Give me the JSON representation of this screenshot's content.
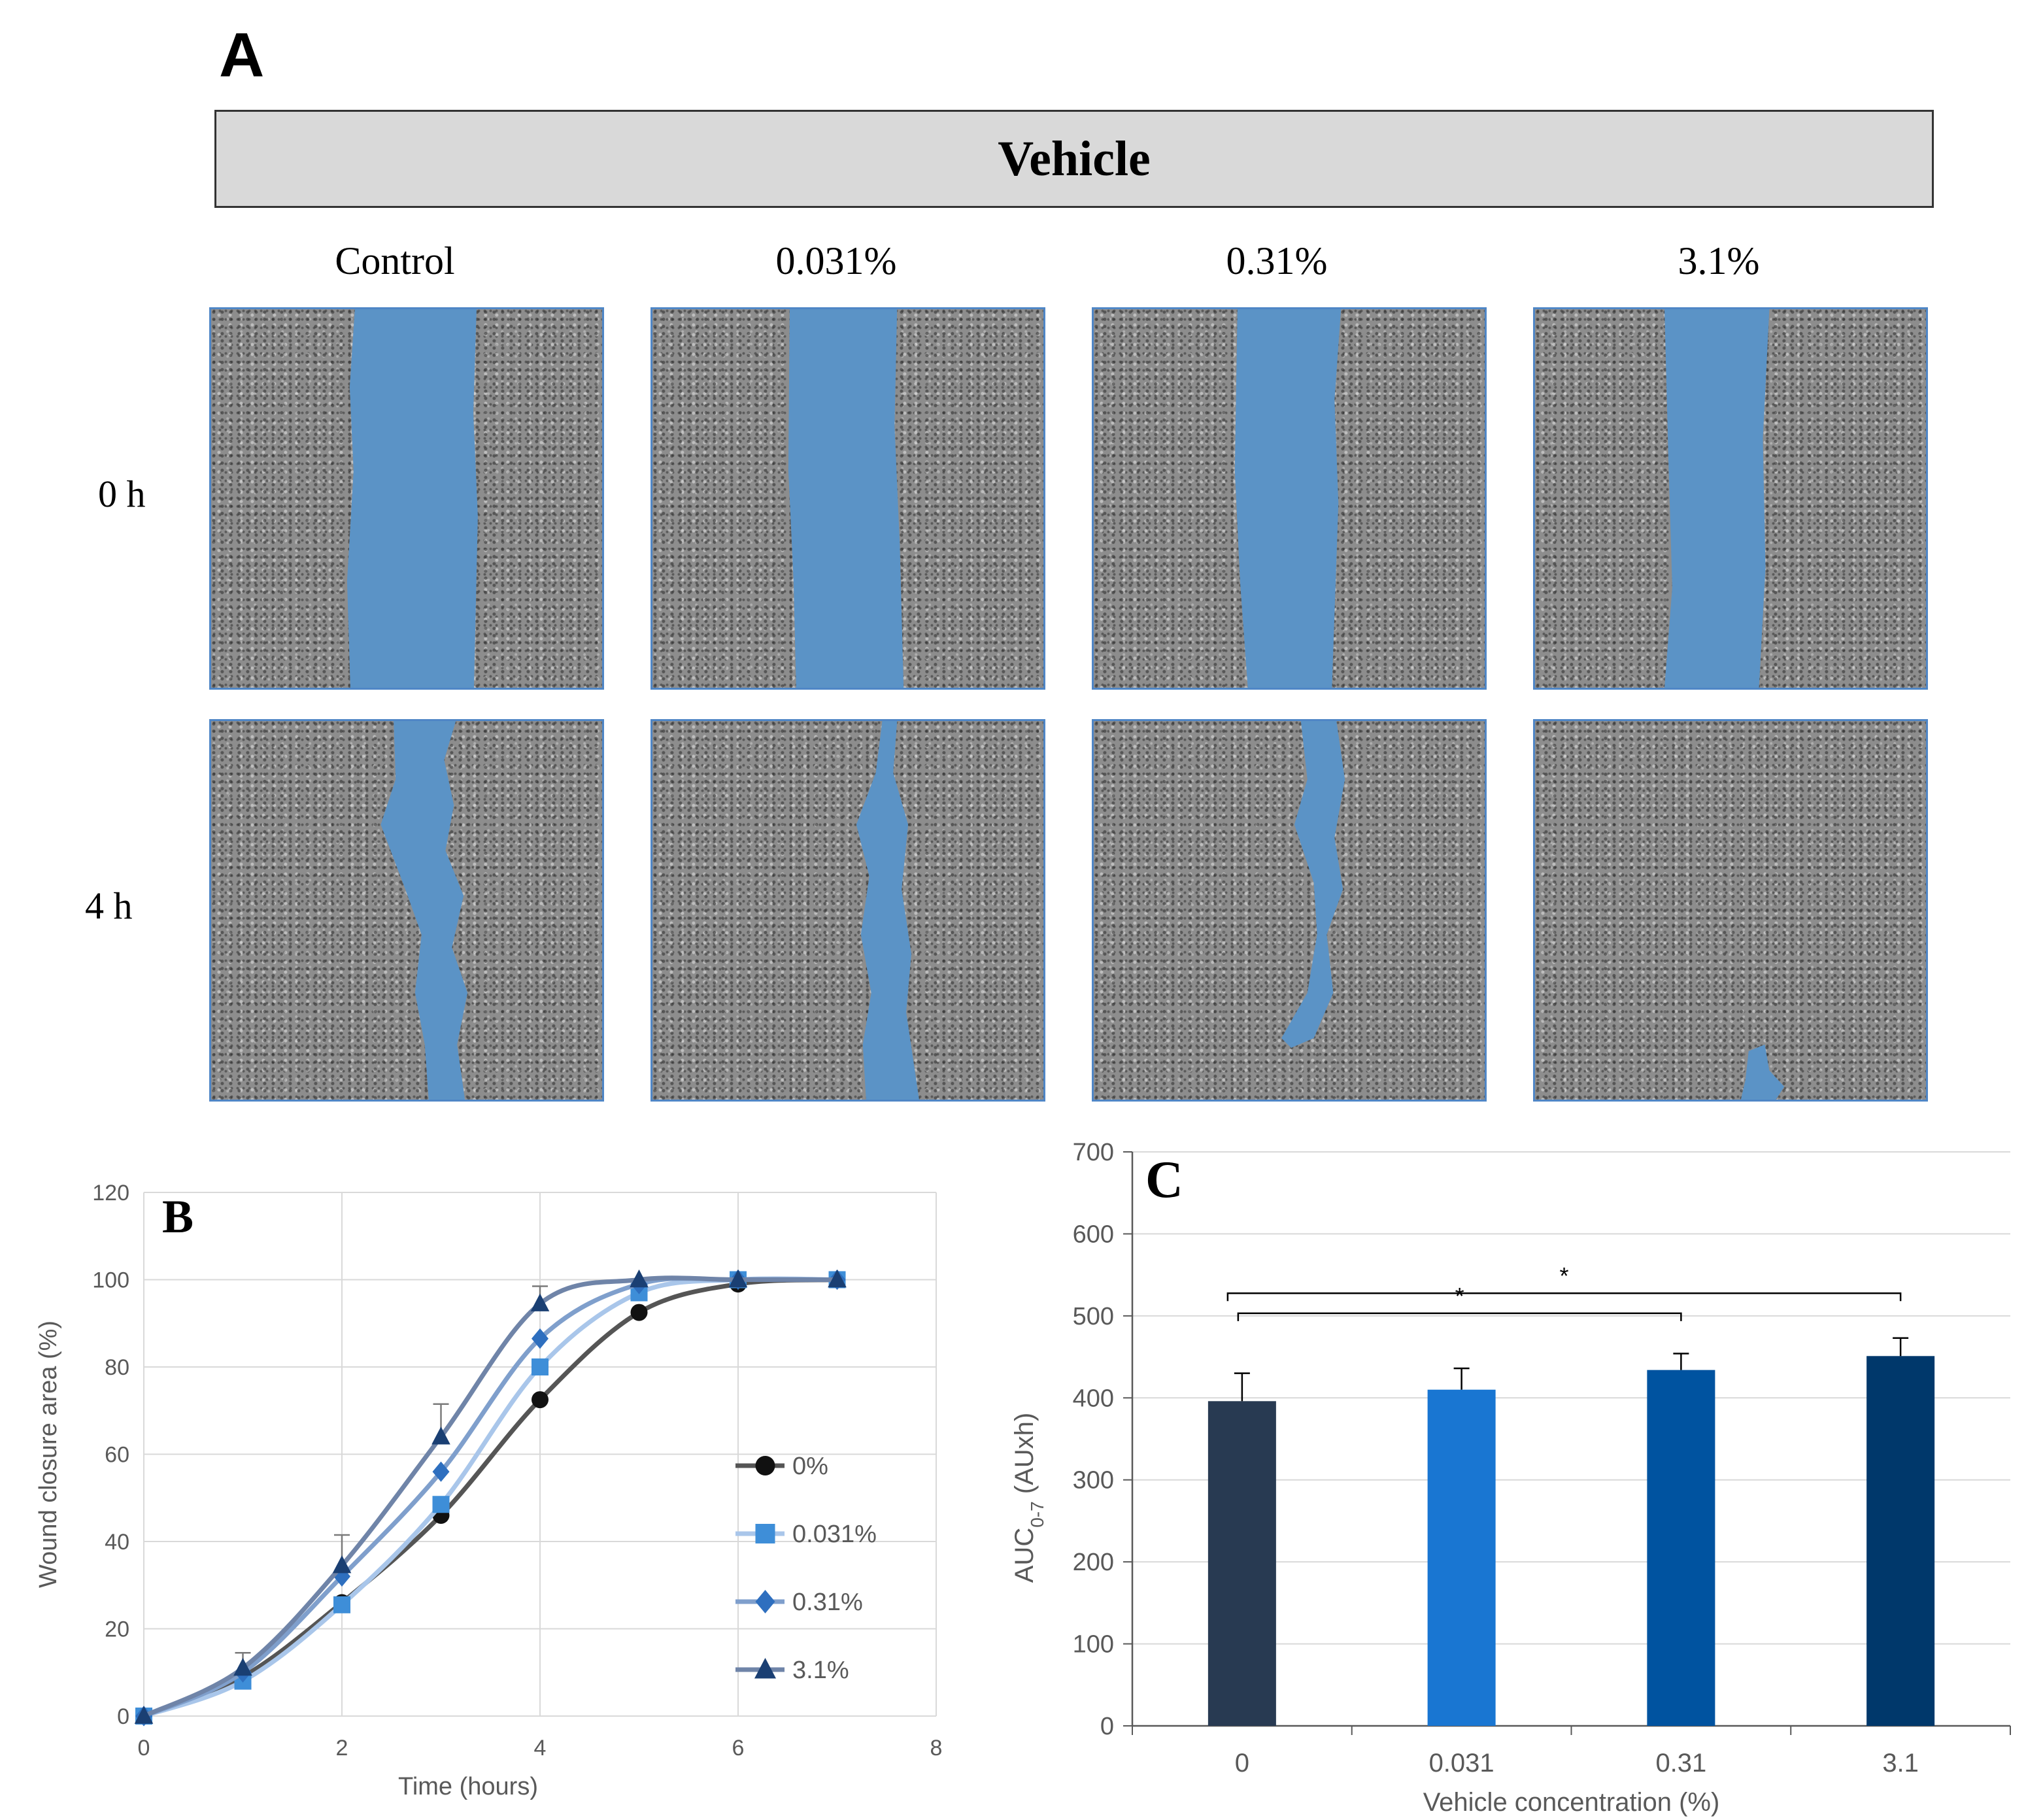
{
  "figure": {
    "panel_a_letter": "A",
    "vehicle_title": "Vehicle",
    "columns": [
      "Control",
      "0.031%",
      "0.31%",
      "3.1%"
    ],
    "rows": [
      "0 h",
      "4 h"
    ],
    "wound_color": "#5b93c6"
  },
  "chart_data": [
    {
      "panel": "B",
      "type": "line",
      "title": "",
      "xlabel": "Time (hours)",
      "ylabel": "Wound closure area (%)",
      "xlim": [
        0,
        8
      ],
      "ylim": [
        0,
        120
      ],
      "xticks": [
        "0",
        "2",
        "4",
        "6",
        "8"
      ],
      "yticks": [
        "0",
        "20",
        "40",
        "60",
        "80",
        "100",
        "120"
      ],
      "grid": true,
      "legend_position": "right",
      "x": [
        0,
        1,
        2,
        3,
        4,
        5,
        6,
        7
      ],
      "series": [
        {
          "name": "0%",
          "color": "#555555",
          "marker_color": "#111111",
          "marker": "circle",
          "values": [
            0,
            9,
            26,
            46,
            72.5,
            92.5,
            99,
            100
          ],
          "err": [
            0,
            0,
            0,
            0,
            0,
            0,
            0,
            0
          ]
        },
        {
          "name": "0.031%",
          "color": "#a9c6ea",
          "marker_color": "#3e8ed8",
          "marker": "square",
          "values": [
            0,
            8,
            25.5,
            48.5,
            80,
            97,
            100,
            100
          ],
          "err": [
            0,
            0,
            0,
            0,
            0,
            0,
            0,
            0
          ]
        },
        {
          "name": "0.31%",
          "color": "#7f9fcc",
          "marker_color": "#2e6fbf",
          "marker": "diamond",
          "values": [
            0,
            10,
            32,
            56,
            86.5,
            99,
            100,
            100
          ],
          "err": [
            0,
            0,
            0,
            0,
            0,
            0,
            0,
            0
          ]
        },
        {
          "name": "3.1%",
          "color": "#6f84a8",
          "marker_color": "#1a3f73",
          "marker": "triangle",
          "values": [
            0,
            11,
            34.5,
            64,
            94.5,
            100,
            100,
            100
          ],
          "err": [
            0,
            3.5,
            7,
            7.5,
            4,
            0,
            0,
            0
          ]
        }
      ]
    },
    {
      "panel": "C",
      "type": "bar",
      "title": "",
      "xlabel": "Vehicle concentration (%)",
      "ylabel_main": "AUC",
      "ylabel_sub": "0-7",
      "ylabel_unit": " (AUxh)",
      "categories": [
        "0",
        "0.031",
        "0.31",
        "3.1"
      ],
      "values": [
        396,
        410,
        434,
        451
      ],
      "err": [
        34,
        26,
        20,
        22
      ],
      "colors": [
        "#283a52",
        "#1976d2",
        "#0053a0",
        "#00386b"
      ],
      "ylim": [
        0,
        700
      ],
      "yticks": [
        "0",
        "100",
        "200",
        "300",
        "400",
        "500",
        "600",
        "700"
      ],
      "grid": true,
      "significance": [
        {
          "from": 0,
          "to": 2,
          "label": "*"
        },
        {
          "from": 0,
          "to": 3,
          "label": "*"
        }
      ]
    }
  ],
  "panel_labels": {
    "b": "B",
    "c": "C"
  }
}
